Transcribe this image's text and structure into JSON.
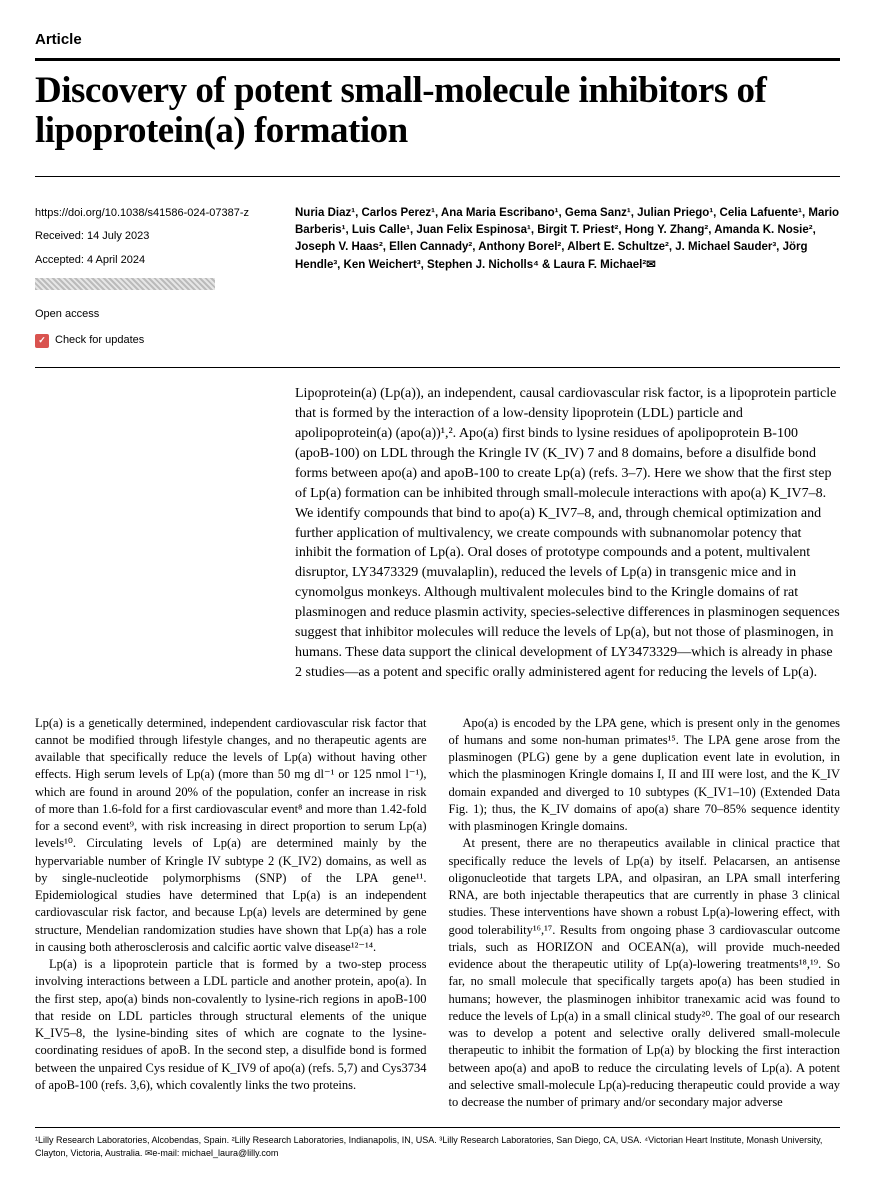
{
  "label": "Article",
  "title": "Discovery of potent small-molecule inhibitors of lipoprotein(a) formation",
  "doi": "https://doi.org/10.1038/s41586-024-07387-z",
  "received": "Received: 14 July 2023",
  "accepted": "Accepted: 4 April 2024",
  "open_access": "Open access",
  "check_updates": "Check for updates",
  "authors_html": "Nuria Diaz¹, Carlos Perez¹, Ana Maria Escribano¹, Gema Sanz¹, Julian Priego¹, Celia Lafuente¹, Mario Barberis¹, Luis Calle¹, Juan Felix Espinosa¹, Birgit T. Priest², Hong Y. Zhang², Amanda K. Nosie², Joseph V. Haas², Ellen Cannady², Anthony Borel², Albert E. Schultze², J. Michael Sauder³, Jörg Hendle³, Ken Weichert³, Stephen J. Nicholls⁴ & Laura F. Michael²✉",
  "abstract": "Lipoprotein(a) (Lp(a)), an independent, causal cardiovascular risk factor, is a lipoprotein particle that is formed by the interaction of a low-density lipoprotein (LDL) particle and apolipoprotein(a) (apo(a))¹,². Apo(a) first binds to lysine residues of apolipoprotein B-100 (apoB-100) on LDL through the Kringle IV (K_IV) 7 and 8 domains, before a disulfide bond forms between apo(a) and apoB-100 to create Lp(a) (refs. 3–7). Here we show that the first step of Lp(a) formation can be inhibited through small-molecule interactions with apo(a) K_IV7–8. We identify compounds that bind to apo(a) K_IV7–8, and, through chemical optimization and further application of multivalency, we create compounds with subnanomolar potency that inhibit the formation of Lp(a). Oral doses of prototype compounds and a potent, multivalent disruptor, LY3473329 (muvalaplin), reduced the levels of Lp(a) in transgenic mice and in cynomolgus monkeys. Although multivalent molecules bind to the Kringle domains of rat plasminogen and reduce plasmin activity, species-selective differences in plasminogen sequences suggest that inhibitor molecules will reduce the levels of Lp(a), but not those of plasminogen, in humans. These data support the clinical development of LY3473329—which is already in phase 2 studies—as a potent and specific orally administered agent for reducing the levels of Lp(a).",
  "body": {
    "p1": "Lp(a) is a genetically determined, independent cardiovascular risk factor that cannot be modified through lifestyle changes, and no therapeutic agents are available that specifically reduce the levels of Lp(a) without having other effects. High serum levels of Lp(a) (more than 50 mg dl⁻¹ or 125 nmol l⁻¹), which are found in around 20% of the population, confer an increase in risk of more than 1.6-fold for a first cardiovascular event⁸ and more than 1.42-fold for a second event⁹, with risk increasing in direct proportion to serum Lp(a) levels¹⁰. Circulating levels of Lp(a) are determined mainly by the hypervariable number of Kringle IV subtype 2 (K_IV2) domains, as well as by single-nucleotide polymorphisms (SNP) of the LPA gene¹¹. Epidemiological studies have determined that Lp(a) is an independent cardiovascular risk factor, and because Lp(a) levels are determined by gene structure, Mendelian randomization studies have shown that Lp(a) has a role in causing both atherosclerosis and calcific aortic valve disease¹²⁻¹⁴.",
    "p2": "Lp(a) is a lipoprotein particle that is formed by a two-step process involving interactions between a LDL particle and another protein, apo(a). In the first step, apo(a) binds non-covalently to lysine-rich regions in apoB-100 that reside on LDL particles through structural elements of the unique K_IV5–8, the lysine-binding sites of which are cognate to the lysine-coordinating residues of apoB. In the second step, a disulfide bond is formed between the unpaired Cys residue of K_IV9 of apo(a) (refs. 5,7) and Cys3734 of apoB-100 (refs. 3,6), which covalently links the two proteins.",
    "p3": "Apo(a) is encoded by the LPA gene, which is present only in the genomes of humans and some non-human primates¹⁵. The LPA gene arose from the plasminogen (PLG) gene by a gene duplication event late in evolution, in which the plasminogen Kringle domains I, II and III were lost, and the K_IV domain expanded and diverged to 10 subtypes (K_IV1–10) (Extended Data Fig. 1); thus, the K_IV domains of apo(a) share 70–85% sequence identity with plasminogen Kringle domains.",
    "p4": "At present, there are no therapeutics available in clinical practice that specifically reduce the levels of Lp(a) by itself. Pelacarsen, an antisense oligonucleotide that targets LPA, and olpasiran, an LPA small interfering RNA, are both injectable therapeutics that are currently in phase 3 clinical studies. These interventions have shown a robust Lp(a)-lowering effect, with good tolerability¹⁶,¹⁷. Results from ongoing phase 3 cardiovascular outcome trials, such as HORIZON and OCEAN(a), will provide much-needed evidence about the therapeutic utility of Lp(a)-lowering treatments¹⁸,¹⁹. So far, no small molecule that specifically targets apo(a) has been studied in humans; however, the plasminogen inhibitor tranexamic acid was found to reduce the levels of Lp(a) in a small clinical study²⁰. The goal of our research was to develop a potent and selective orally delivered small-molecule therapeutic to inhibit the formation of Lp(a) by blocking the first interaction between apo(a) and apoB to reduce the circulating levels of Lp(a). A potent and selective small-molecule Lp(a)-reducing therapeutic could provide a way to decrease the number of primary and/or secondary major adverse"
  },
  "affiliations": "¹Lilly Research Laboratories, Alcobendas, Spain. ²Lilly Research Laboratories, Indianapolis, IN, USA. ³Lilly Research Laboratories, San Diego, CA, USA. ⁴Victorian Heart Institute, Monash University, Clayton, Victoria, Australia. ✉e-mail: michael_laura@lilly.com"
}
